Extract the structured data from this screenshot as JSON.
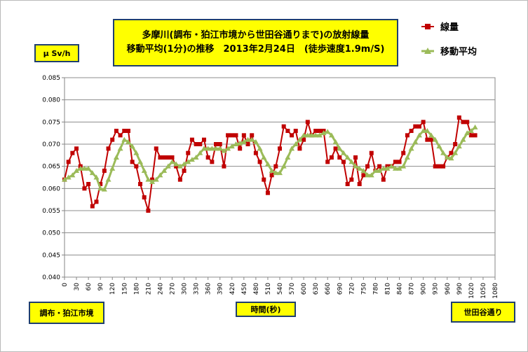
{
  "title_line1": "多摩川(調布・狛江市境から世田谷通りまで)の放射線量",
  "title_line2": "移動平均(1分)の推移　2013年2月24日　(徒歩速度1.9m/S)",
  "unit_label": "μ Sv/h",
  "start_label": "調布・狛江市境",
  "xlabel": "時間(秒)",
  "end_label": "世田谷通り",
  "chart_data": {
    "type": "line",
    "ylim": [
      0.04,
      0.085
    ],
    "yticks": [
      "0.040",
      "0.045",
      "0.050",
      "0.055",
      "0.060",
      "0.065",
      "0.070",
      "0.075",
      "0.080",
      "0.085"
    ],
    "x_step": 10,
    "xlim": [
      0,
      1080
    ],
    "xtick_step": 30,
    "grid": true,
    "legend_position": "top-right",
    "series": [
      {
        "name": "線量",
        "color": "#c00000",
        "marker": "square",
        "values": [
          0.062,
          0.066,
          0.068,
          0.069,
          0.065,
          0.06,
          0.061,
          0.056,
          0.057,
          0.061,
          0.064,
          0.069,
          0.071,
          0.073,
          0.072,
          0.073,
          0.073,
          0.066,
          0.065,
          0.061,
          0.058,
          0.055,
          0.062,
          0.069,
          0.067,
          0.067,
          0.067,
          0.067,
          0.065,
          0.062,
          0.064,
          0.068,
          0.071,
          0.07,
          0.07,
          0.071,
          0.067,
          0.066,
          0.07,
          0.07,
          0.065,
          0.072,
          0.072,
          0.072,
          0.069,
          0.072,
          0.07,
          0.072,
          0.068,
          0.066,
          0.062,
          0.059,
          0.063,
          0.065,
          0.069,
          0.074,
          0.073,
          0.072,
          0.073,
          0.069,
          0.071,
          0.075,
          0.072,
          0.073,
          0.073,
          0.073,
          0.066,
          0.067,
          0.069,
          0.067,
          0.066,
          0.061,
          0.062,
          0.067,
          0.061,
          0.063,
          0.065,
          0.068,
          0.064,
          0.065,
          0.062,
          0.065,
          0.065,
          0.066,
          0.066,
          0.068,
          0.072,
          0.073,
          0.074,
          0.074,
          0.075,
          0.071,
          0.071,
          0.065,
          0.065,
          0.065,
          0.067,
          0.068,
          0.07,
          0.076,
          0.075,
          0.075,
          0.072,
          0.072
        ]
      },
      {
        "name": "移動平均",
        "color": "#9bbb59",
        "marker": "triangle",
        "values": [
          0.062,
          0.0625,
          0.063,
          0.064,
          0.0645,
          0.0645,
          0.0645,
          0.0635,
          0.0625,
          0.06,
          0.0598,
          0.062,
          0.0645,
          0.067,
          0.069,
          0.071,
          0.0705,
          0.0695,
          0.068,
          0.066,
          0.064,
          0.062,
          0.0615,
          0.062,
          0.063,
          0.064,
          0.065,
          0.066,
          0.0655,
          0.065,
          0.0655,
          0.066,
          0.0665,
          0.067,
          0.068,
          0.069,
          0.069,
          0.069,
          0.069,
          0.069,
          0.0685,
          0.069,
          0.0695,
          0.07,
          0.0702,
          0.0705,
          0.071,
          0.071,
          0.0705,
          0.069,
          0.067,
          0.0655,
          0.064,
          0.0635,
          0.0635,
          0.065,
          0.067,
          0.069,
          0.07,
          0.071,
          0.072,
          0.072,
          0.072,
          0.072,
          0.072,
          0.0725,
          0.0728,
          0.072,
          0.0705,
          0.069,
          0.068,
          0.067,
          0.066,
          0.065,
          0.0645,
          0.064,
          0.063,
          0.063,
          0.064,
          0.064,
          0.0645,
          0.0645,
          0.065,
          0.0645,
          0.0645,
          0.065,
          0.067,
          0.069,
          0.0705,
          0.072,
          0.073,
          0.073,
          0.072,
          0.071,
          0.0695,
          0.068,
          0.067,
          0.0668,
          0.068,
          0.0695,
          0.071,
          0.0725,
          0.073,
          0.0738
        ]
      }
    ]
  }
}
